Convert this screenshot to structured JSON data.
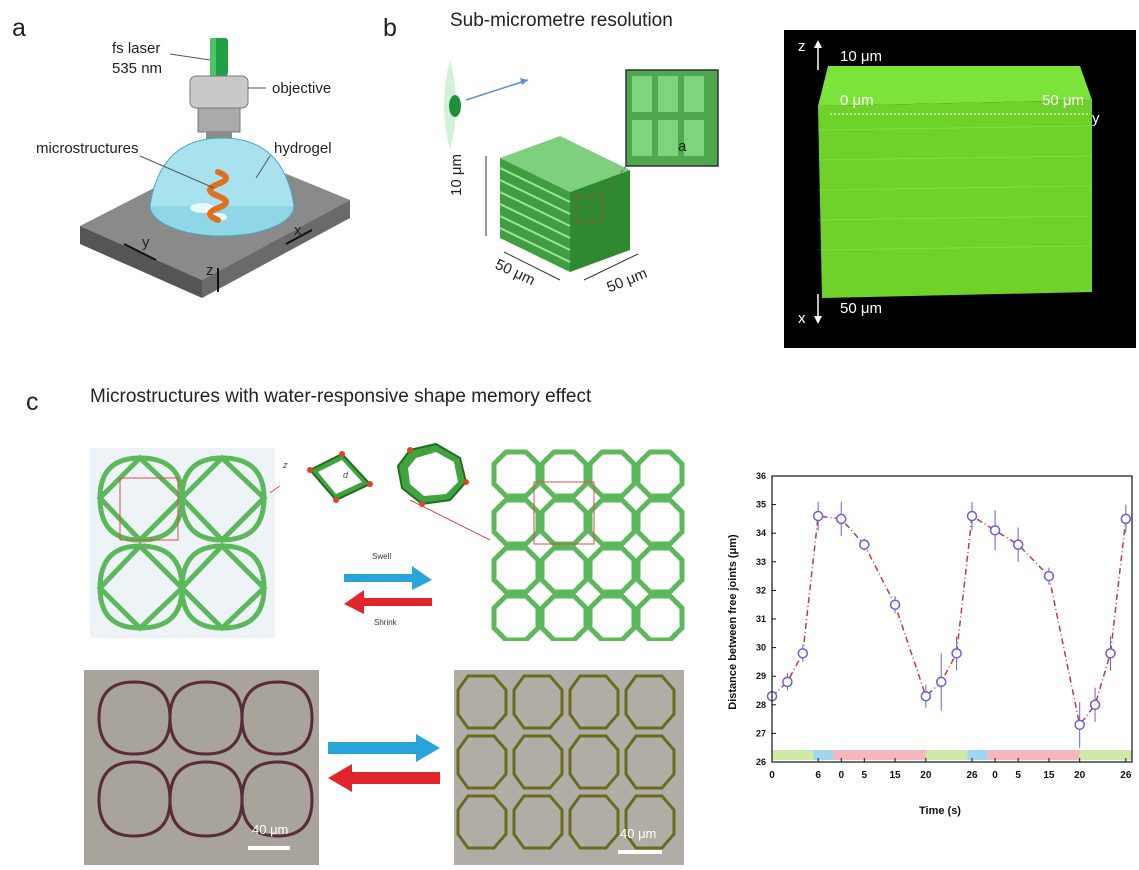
{
  "panel_a": {
    "letter": "a",
    "laser_label_line1": "fs laser",
    "laser_label_line2": "535 nm",
    "objective_label": "objective",
    "microstructures_label": "microstructures",
    "hydrogel_label": "hydrogel",
    "axis_x": "x",
    "axis_y": "y",
    "axis_z": "z"
  },
  "panel_b": {
    "letter": "b",
    "title": "Sub-micrometre resolution",
    "dim_height": "10 μm",
    "dim_depth": "50 μm",
    "dim_width": "50 μm",
    "inset_label": "a",
    "confocal": {
      "axis_z": "z",
      "axis_x": "x",
      "axis_y": "y",
      "label_top": "10 μm",
      "label_start": "0 μm",
      "label_end": "50 μm",
      "label_bottom": "50 μm"
    }
  },
  "panel_c": {
    "letter": "c",
    "title": "Microstructures with water-responsive shape memory effect",
    "swell_label": "Swell",
    "shrink_label": "Shrink",
    "d_label": "d",
    "z_label": "z",
    "scale_bar_left": "40 μm",
    "scale_bar_right": "40 μm"
  },
  "chart_data": {
    "type": "line",
    "xlabel": "Time (s)",
    "ylabel": "Distance between free joints (μm)",
    "ylim": [
      26,
      36
    ],
    "yticks": [
      26,
      27,
      28,
      29,
      30,
      31,
      32,
      33,
      34,
      35,
      36
    ],
    "xtick_labels": [
      "0",
      "6",
      "0",
      "5",
      "15",
      "20",
      "26",
      "0",
      "5",
      "15",
      "20",
      "26"
    ],
    "series": [
      {
        "points": [
          {
            "x": 0,
            "y": 28.3,
            "err": 0.3
          },
          {
            "x": 0.5,
            "y": 28.8,
            "err": 0.3
          },
          {
            "x": 1.0,
            "y": 29.8,
            "err": 0.3
          },
          {
            "x": 1.5,
            "y": 34.6,
            "err": 0.5
          },
          {
            "x": 2.25,
            "y": 34.5,
            "err": 0.6
          },
          {
            "x": 3.0,
            "y": 33.6,
            "err": 0.2
          },
          {
            "x": 4.0,
            "y": 31.5,
            "err": 0.3
          },
          {
            "x": 5.0,
            "y": 28.3,
            "err": 0.4
          },
          {
            "x": 5.5,
            "y": 28.8,
            "err": 1.0
          },
          {
            "x": 6.0,
            "y": 29.8,
            "err": 0.6
          },
          {
            "x": 6.5,
            "y": 34.6,
            "err": 0.5
          },
          {
            "x": 7.25,
            "y": 34.1,
            "err": 0.7
          },
          {
            "x": 8.0,
            "y": 33.6,
            "err": 0.6
          },
          {
            "x": 9.0,
            "y": 32.5,
            "err": 0.3
          },
          {
            "x": 10.0,
            "y": 27.3,
            "err": 0.8
          },
          {
            "x": 10.5,
            "y": 28.0,
            "err": 0.6
          },
          {
            "x": 11.0,
            "y": 29.8,
            "err": 0.6
          },
          {
            "x": 11.5,
            "y": 34.5,
            "err": 0.5
          }
        ]
      }
    ],
    "bands": [
      {
        "from": 0,
        "to": 1.35,
        "color": "#cfe9a6"
      },
      {
        "from": 1.35,
        "to": 2.0,
        "color": "#9fd8ee"
      },
      {
        "from": 2.0,
        "to": 5.0,
        "color": "#f4b7bd"
      },
      {
        "from": 5.0,
        "to": 6.35,
        "color": "#cfe9a6"
      },
      {
        "from": 6.35,
        "to": 7.0,
        "color": "#9fd8ee"
      },
      {
        "from": 7.0,
        "to": 10.0,
        "color": "#f4b7bd"
      },
      {
        "from": 10.0,
        "to": 11.7,
        "color": "#cfe9a6"
      }
    ],
    "colors": {
      "marker": "#6b5ce0",
      "line": "#c23b3b"
    }
  }
}
